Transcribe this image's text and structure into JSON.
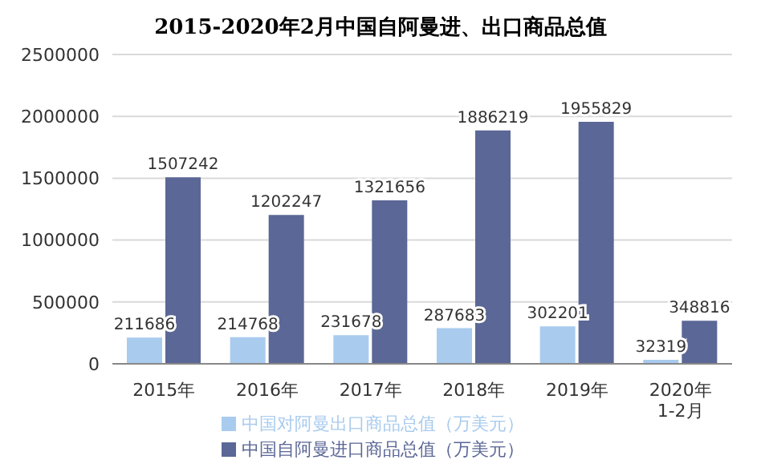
{
  "chart_data": {
    "type": "bar",
    "title": "2015-2020年2月中国自阿曼进、出口商品总值",
    "categories": [
      "2015年",
      "2016年",
      "2017年",
      "2018年",
      "2019年",
      "2020年\n1-2月"
    ],
    "series": [
      {
        "name": "中国对阿曼出口商品总值（万美元）",
        "color": "#a9cbee",
        "values": [
          211686,
          214768,
          231678,
          287683,
          302201,
          32319
        ]
      },
      {
        "name": "中国自阿曼进口商品总值（万美元）",
        "color": "#5b6796",
        "values": [
          1507242,
          1202247,
          1321656,
          1886219,
          1955829,
          348816
        ]
      }
    ],
    "ylim": [
      0,
      2500000
    ],
    "yticks": [
      0,
      500000,
      1000000,
      1500000,
      2000000,
      2500000
    ],
    "grid": "y",
    "legend": "bottom",
    "data_labels": true
  }
}
